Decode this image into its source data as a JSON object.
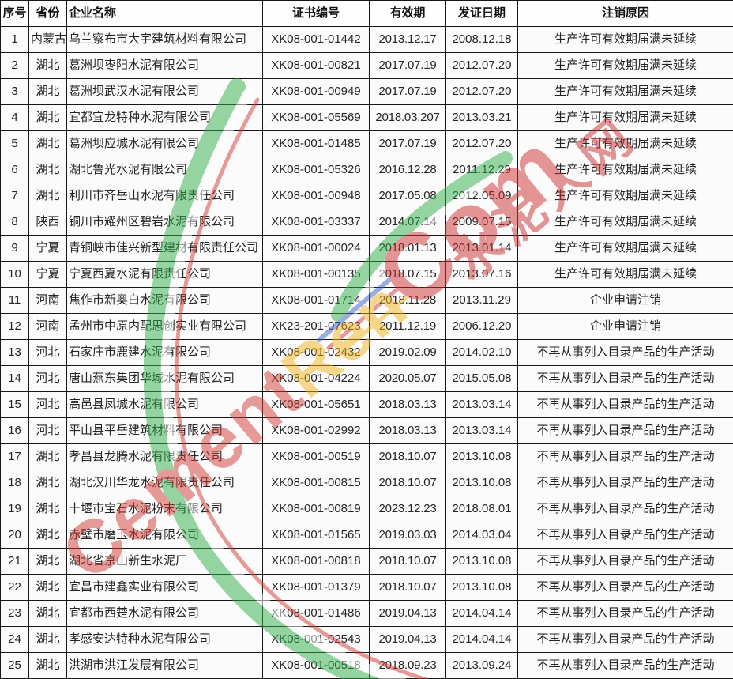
{
  "table": {
    "headers": [
      "序号",
      "省份",
      "企业名称",
      "证书编号",
      "有效期",
      "发证日期",
      "注销原因"
    ],
    "rows": [
      [
        "1",
        "内蒙古",
        "乌兰察布市大宇建筑材料有限公司",
        "XK08-001-01442",
        "2013.12.17",
        "2008.12.18",
        "生产许可有效期届满未延续"
      ],
      [
        "2",
        "湖北",
        "葛洲坝枣阳水泥有限公司",
        "XK08-001-00821",
        "2017.07.19",
        "2012.07.20",
        "生产许可有效期届满未延续"
      ],
      [
        "3",
        "湖北",
        "葛洲坝武汉水泥有限公司",
        "XK08-001-00949",
        "2017.07.19",
        "2012.07.20",
        "生产许可有效期届满未延续"
      ],
      [
        "4",
        "湖北",
        "宜都宜龙特种水泥有限公司",
        "XK08-001-05569",
        "2018.03.207",
        "2013.03.21",
        "生产许可有效期届满未延续"
      ],
      [
        "5",
        "湖北",
        "葛洲坝应城水泥有限公司",
        "XK08-001-01485",
        "2017.07.19",
        "2012.07.20",
        "生产许可有效期届满未延续"
      ],
      [
        "6",
        "湖北",
        "湖北鲁光水泥有限公司",
        "XK08-001-05326",
        "2016.12.28",
        "2011.12.29",
        "生产许可有效期届满未延续"
      ],
      [
        "7",
        "湖北",
        "利川市齐岳山水泥有限责任公司",
        "XK08-001-00948",
        "2017.05.08",
        "2012.05.09",
        "生产许可有效期届满未延续"
      ],
      [
        "8",
        "陕西",
        "铜川市耀州区碧岩水泥有限公司",
        "XK08-001-03337",
        "2014.07.14",
        "2009.07.15",
        "生产许可有效期届满未延续"
      ],
      [
        "9",
        "宁夏",
        "青铜峡市佳兴新型建材有限责任公司",
        "XK08-001-00024",
        "2018.01.13",
        "2013.01.14",
        "生产许可有效期届满未延续"
      ],
      [
        "10",
        "宁夏",
        "宁夏西夏水泥有限责任公司",
        "XK08-001-00135",
        "2018.07.15",
        "2013.07.16",
        "生产许可有效期届满未延续"
      ],
      [
        "11",
        "河南",
        "焦作市新奥白水泥有限公司",
        "XK08-001-01714",
        "2018.11.28",
        "2013.11.29",
        "企业申请注销"
      ],
      [
        "12",
        "河南",
        "孟州市中原内配思创实业有限公司",
        "XK23-201-07623",
        "2011.12.19",
        "2006.12.20",
        "企业申请注销"
      ],
      [
        "13",
        "河北",
        "石家庄市鹿建水泥有限公司",
        "XK08-001-02432",
        "2019.02.09",
        "2014.02.10",
        "不再从事列入目录产品的生产活动"
      ],
      [
        "14",
        "河北",
        "唐山燕东集团华城水泥有限公司",
        "XK08-001-04224",
        "2020.05.07",
        "2015.05.08",
        "不再从事列入目录产品的生产活动"
      ],
      [
        "15",
        "河北",
        "高邑县凤城水泥有限公司",
        "XK08-001-05651",
        "2018.03.13",
        "2013.03.14",
        "不再从事列入目录产品的生产活动"
      ],
      [
        "16",
        "河北",
        "平山县平岳建筑材料有限公司",
        "XK08-001-02992",
        "2018.03.13",
        "2013.03.14",
        "不再从事列入目录产品的生产活动"
      ],
      [
        "17",
        "湖北",
        "孝昌县龙腾水泥有限责任公司",
        "XK08-001-00519",
        "2018.10.07",
        "2013.10.08",
        "不再从事列入目录产品的生产活动"
      ],
      [
        "18",
        "湖北",
        "湖北汉川华龙水泥有限责任公司",
        "XK08-001-00815",
        "2018.10.07",
        "2013.10.08",
        "不再从事列入目录产品的生产活动"
      ],
      [
        "19",
        "湖北",
        "十堰市宝石水泥粉末有限公司",
        "XK08-001-00819",
        "2023.12.23",
        "2018.08.01",
        "不再从事列入目录产品的生产活动"
      ],
      [
        "20",
        "湖北",
        "赤壁市磨玉水泥有限公司",
        "XK08-001-01565",
        "2019.03.03",
        "2014.03.04",
        "不再从事列入目录产品的生产活动"
      ],
      [
        "21",
        "湖北",
        "湖北省京山新生水泥厂",
        "XK08-001-00818",
        "2018.10.07",
        "2013.10.08",
        "不再从事列入目录产品的生产活动"
      ],
      [
        "22",
        "湖北",
        "宜昌市建鑫实业有限公司",
        "XK08-001-01379",
        "2018.10.07",
        "2013.10.08",
        "不再从事列入目录产品的生产活动"
      ],
      [
        "23",
        "湖北",
        "宜都市西楚水泥有限公司",
        "XK08-001-01486",
        "2019.04.13",
        "2014.04.14",
        "不再从事列入目录产品的生产活动"
      ],
      [
        "24",
        "湖北",
        "孝感安达特种水泥有限公司",
        "XK08-001-02543",
        "2019.04.13",
        "2014.04.14",
        "不再从事列入目录产品的生产活动"
      ],
      [
        "25",
        "湖北",
        "洪湖市洪江发展有限公司",
        "XK08-001-00518",
        "2018.09.23",
        "2013.09.24",
        "不再从事列入目录产品的生产活动"
      ]
    ]
  },
  "watermark": {
    "cement": "Cement",
    "ren": "Ren",
    "com": "Com",
    "cn": "水泥人网",
    "color_red": "#d23b35",
    "color_yellow": "#f0b31c",
    "color_green": "#2fae4a"
  }
}
